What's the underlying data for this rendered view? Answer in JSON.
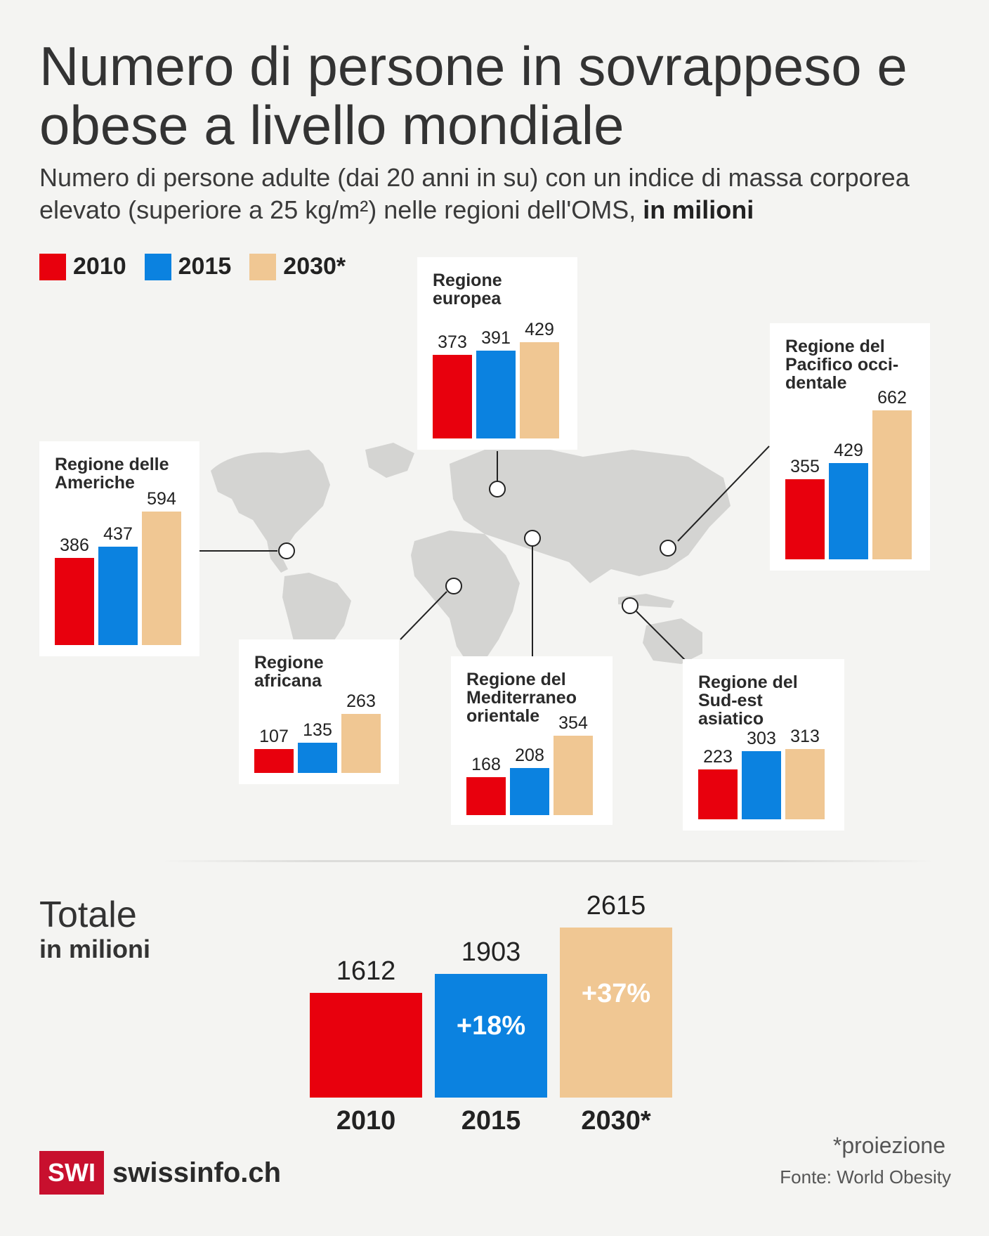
{
  "title": "Numero di persone in sovrappeso e obese a livello mondiale",
  "subtitle_main": "Numero di persone adulte (dai 20 anni in su) con un indice di massa corporea elevato (superiore a 25 kg/m²) nelle regioni dell'OMS,",
  "subtitle_bold": "in milioni",
  "colors": {
    "2010": "#e8000d",
    "2015": "#0b82e0",
    "2030": "#f0c793",
    "map": "#d4d4d2"
  },
  "legend": [
    "2010",
    "2015",
    "2030*"
  ],
  "chart_data": [
    {
      "type": "bar",
      "title": "Regioni dell'OMS",
      "series_names": [
        "2010",
        "2015",
        "2030*"
      ],
      "regions": [
        {
          "name": "Regione delle Americhe",
          "label": "Regione delle\nAmeriche",
          "values": [
            386,
            437,
            594
          ]
        },
        {
          "name": "Regione europea",
          "label": "Regione\neuropea",
          "values": [
            373,
            391,
            429
          ]
        },
        {
          "name": "Regione del Pacifico occidentale",
          "label": "Regione del\nPacifico occi-\ndentale",
          "values": [
            355,
            429,
            662
          ]
        },
        {
          "name": "Regione africana",
          "label": "Regione\nafricana",
          "values": [
            107,
            135,
            263
          ]
        },
        {
          "name": "Regione del Mediterraneo orientale",
          "label": "Regione del\nMediterraneo\norientale",
          "values": [
            168,
            208,
            354
          ]
        },
        {
          "name": "Regione del Sud-est asiatico",
          "label": "Regione del\nSud-est\nasiatico",
          "values": [
            223,
            303,
            313
          ]
        }
      ]
    },
    {
      "type": "bar",
      "title": "Totale",
      "subtitle": "in milioni",
      "categories": [
        "2010",
        "2015",
        "2030*"
      ],
      "values": [
        1612,
        1903,
        2615
      ],
      "changes": [
        "",
        "+18%",
        "+37%"
      ]
    }
  ],
  "footer": {
    "logo_box": "SWI",
    "logo_text": "swissinfo.ch",
    "note": "*proiezione",
    "source": "Fonte: World Obesity"
  }
}
